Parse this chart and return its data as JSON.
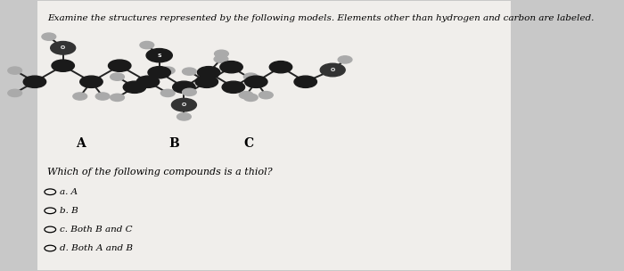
{
  "background_color": "#c8c8c8",
  "panel_color": "#f0eeeb",
  "title_text": "Examine the structures represented by the following models. Elements other than hydrogen and carbon are labeled.",
  "question_text": "Which of the following compounds is a thiol?",
  "choices": [
    "a. A",
    "b. B",
    "c. Both B and C",
    "d. Both A and B"
  ],
  "labels": [
    "A",
    "B",
    "C"
  ],
  "title_fontsize": 7.5,
  "question_fontsize": 8,
  "choice_fontsize": 7.5,
  "label_fontsize": 10
}
